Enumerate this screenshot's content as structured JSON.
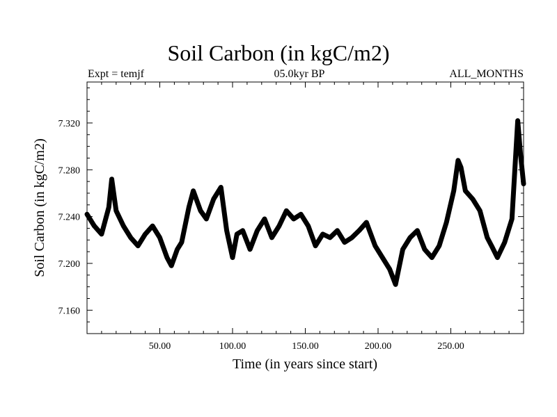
{
  "chart_data": {
    "type": "line",
    "title": "Soil Carbon (in kgC/m2)",
    "subtitle_left": "Expt = temjf",
    "subtitle_center": "05.0kyr BP",
    "subtitle_right": "ALL_MONTHS",
    "xlabel": "Time (in years since start)",
    "ylabel": "Soil Carbon (in kgC/m2)",
    "xlim": [
      0,
      300
    ],
    "ylim": [
      7.14,
      7.355
    ],
    "x_ticks": [
      50,
      100,
      150,
      200,
      250
    ],
    "x_tick_labels": [
      "50.00",
      "100.00",
      "150.00",
      "200.00",
      "250.00"
    ],
    "y_ticks": [
      7.16,
      7.2,
      7.24,
      7.28,
      7.32
    ],
    "y_tick_labels": [
      "7.160",
      "7.200",
      "7.240",
      "7.280",
      "7.320"
    ],
    "series": [
      {
        "name": "Soil Carbon",
        "x": [
          0,
          5,
          10,
          15,
          17,
          20,
          25,
          30,
          35,
          40,
          45,
          50,
          55,
          58,
          62,
          65,
          70,
          73,
          78,
          82,
          87,
          92,
          96,
          100,
          103,
          107,
          112,
          117,
          122,
          127,
          132,
          137,
          142,
          147,
          152,
          157,
          162,
          167,
          172,
          177,
          182,
          187,
          192,
          198,
          203,
          208,
          212,
          217,
          222,
          227,
          232,
          237,
          242,
          247,
          252,
          255,
          257,
          260,
          265,
          270,
          275,
          278,
          282,
          287,
          292,
          296,
          298,
          300
        ],
        "values": [
          7.242,
          7.232,
          7.225,
          7.248,
          7.272,
          7.245,
          7.232,
          7.222,
          7.215,
          7.225,
          7.232,
          7.222,
          7.205,
          7.198,
          7.212,
          7.218,
          7.248,
          7.262,
          7.245,
          7.238,
          7.255,
          7.265,
          7.228,
          7.205,
          7.225,
          7.228,
          7.212,
          7.228,
          7.238,
          7.222,
          7.232,
          7.245,
          7.238,
          7.242,
          7.232,
          7.215,
          7.225,
          7.222,
          7.228,
          7.218,
          7.222,
          7.228,
          7.235,
          7.215,
          7.205,
          7.195,
          7.182,
          7.212,
          7.222,
          7.228,
          7.212,
          7.205,
          7.215,
          7.235,
          7.262,
          7.288,
          7.282,
          7.262,
          7.255,
          7.245,
          7.222,
          7.215,
          7.205,
          7.218,
          7.238,
          7.322,
          7.292,
          7.268
        ]
      }
    ]
  }
}
